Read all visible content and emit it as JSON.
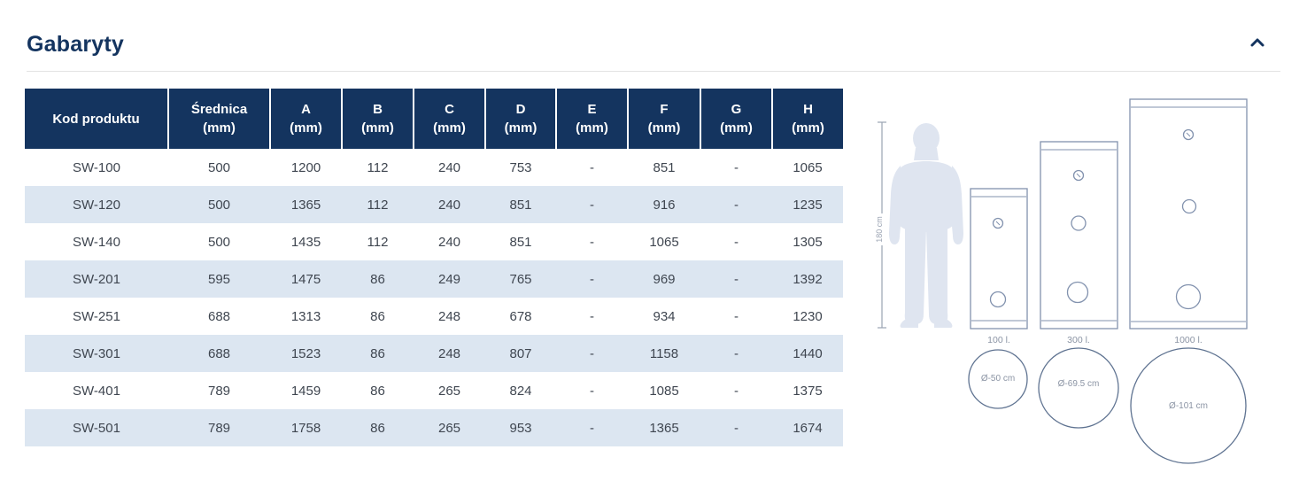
{
  "section": {
    "title": "Gabaryty",
    "collapse_icon": "chevron-up"
  },
  "table": {
    "columns": [
      {
        "label": "Kod produktu",
        "unit": ""
      },
      {
        "label": "Średnica",
        "unit": "(mm)"
      },
      {
        "label": "A",
        "unit": "(mm)"
      },
      {
        "label": "B",
        "unit": "(mm)"
      },
      {
        "label": "C",
        "unit": "(mm)"
      },
      {
        "label": "D",
        "unit": "(mm)"
      },
      {
        "label": "E",
        "unit": "(mm)"
      },
      {
        "label": "F",
        "unit": "(mm)"
      },
      {
        "label": "G",
        "unit": "(mm)"
      },
      {
        "label": "H",
        "unit": "(mm)"
      }
    ],
    "rows": [
      [
        "SW-100",
        "500",
        "1200",
        "112",
        "240",
        "753",
        "-",
        "851",
        "-",
        "1065"
      ],
      [
        "SW-120",
        "500",
        "1365",
        "112",
        "240",
        "851",
        "-",
        "916",
        "-",
        "1235"
      ],
      [
        "SW-140",
        "500",
        "1435",
        "112",
        "240",
        "851",
        "-",
        "1065",
        "-",
        "1305"
      ],
      [
        "SW-201",
        "595",
        "1475",
        "86",
        "249",
        "765",
        "-",
        "969",
        "-",
        "1392"
      ],
      [
        "SW-251",
        "688",
        "1313",
        "86",
        "248",
        "678",
        "-",
        "934",
        "-",
        "1230"
      ],
      [
        "SW-301",
        "688",
        "1523",
        "86",
        "248",
        "807",
        "-",
        "1158",
        "-",
        "1440"
      ],
      [
        "SW-401",
        "789",
        "1459",
        "86",
        "265",
        "824",
        "-",
        "1085",
        "-",
        "1375"
      ],
      [
        "SW-501",
        "789",
        "1758",
        "86",
        "265",
        "953",
        "-",
        "1365",
        "-",
        "1674"
      ]
    ]
  },
  "diagram": {
    "height_label": "180 cm",
    "tanks": [
      {
        "capacity": "100 l.",
        "diameter": "Ø-50 cm"
      },
      {
        "capacity": "300 l.",
        "diameter": "Ø-69.5 cm"
      },
      {
        "capacity": "1000 l.",
        "diameter": "Ø-101 cm"
      }
    ]
  },
  "colors": {
    "navy": "#14345f",
    "row_alt_blue": "#dce6f1",
    "body_text": "#3f4650",
    "tank_outline": "#8292ae",
    "circle_outline": "#5f7391",
    "silhouette_fill": "#dfe5f0",
    "diagram_label": "#8b94a4"
  }
}
